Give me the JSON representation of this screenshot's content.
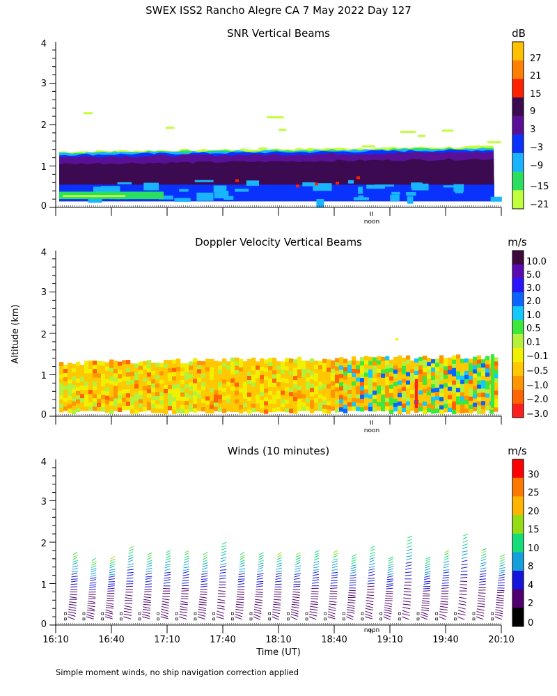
{
  "figure": {
    "title": "SWEX ISS2 Rancho Alegre CA   7 May 2022 Day 127",
    "y_label": "Altitude (km)",
    "x_label": "Time (UT)",
    "footnote": "Simple moment winds, no ship navigation correction applied",
    "noon_label": "noon"
  },
  "chart_data": [
    {
      "type": "heatmap",
      "title": "SNR Vertical Beams",
      "units": "dB",
      "ylim": [
        0,
        4
      ],
      "y_ticks": [
        "0",
        "1",
        "2",
        "3",
        "4"
      ],
      "xlim": [
        "16:10",
        "20:10"
      ],
      "colorbar": {
        "labels": [
          "27",
          "21",
          "15",
          "9",
          "3",
          "−3",
          "−9",
          "−15",
          "−21"
        ],
        "colors": [
          "#ffc000",
          "#ff7f00",
          "#ff2000",
          "#3c0a50",
          "#5a1096",
          "#0a32ff",
          "#19b4ff",
          "#2ade60",
          "#c0ff3c"
        ]
      },
      "layers": [
        {
          "level": "-21",
          "top_km": 1.35
        },
        {
          "level": "-15",
          "top_km": 1.32
        },
        {
          "level": "-9",
          "top_km": 1.3
        },
        {
          "level": "-3",
          "top_km": 1.27
        },
        {
          "level": "3",
          "top_km": 1.22
        },
        {
          "level": "9",
          "top_km": 1.05
        }
      ]
    },
    {
      "type": "heatmap",
      "title": "Doppler Velocity Vertical Beams",
      "units": "m/s",
      "ylim": [
        0,
        4
      ],
      "y_ticks": [
        "0",
        "1",
        "2",
        "3",
        "4"
      ],
      "xlim": [
        "16:10",
        "20:10"
      ],
      "colorbar": {
        "labels": [
          "10.0",
          "5.0",
          "3.0",
          "2.0",
          "1.0",
          "0.5",
          "0.1",
          "−0.1",
          "−0.5",
          "−1.0",
          "−2.0",
          "−3.0"
        ],
        "colors": [
          "#3c0a3c",
          "#5a0ab4",
          "#2814ff",
          "#0a64ff",
          "#14c8ff",
          "#3ce83c",
          "#b4f03c",
          "#f0f000",
          "#ffc800",
          "#ff9600",
          "#ff6400",
          "#ff1e1e"
        ]
      },
      "echo_top_km": 1.3
    },
    {
      "type": "scatter",
      "title": "Winds (10 minutes)",
      "units": "m/s",
      "ylim": [
        0,
        4
      ],
      "y_ticks": [
        "0",
        "1",
        "2",
        "3",
        "4"
      ],
      "x_ticks": [
        "16:10",
        "16:40",
        "17:10",
        "17:40",
        "18:10",
        "18:40",
        "19:10",
        "19:40",
        "20:10"
      ],
      "colorbar": {
        "labels": [
          "30",
          "25",
          "20",
          "15",
          "10",
          "8",
          "4",
          "2",
          "0"
        ],
        "colors": [
          "#ff0000",
          "#ff7800",
          "#ffb400",
          "#96dc14",
          "#14dc78",
          "#14a0dc",
          "#1414dc",
          "#50006e",
          "#000000"
        ]
      },
      "profile_interval_min": 10,
      "profile_top_km": [
        1.7,
        1.55,
        1.6,
        1.85,
        1.7,
        1.75,
        1.75,
        1.7,
        1.95,
        1.7,
        1.7,
        1.7,
        1.7,
        1.75,
        1.75,
        1.65,
        1.85,
        1.6,
        2.1,
        1.6,
        1.75,
        2.15,
        1.8,
        1.65
      ]
    }
  ]
}
